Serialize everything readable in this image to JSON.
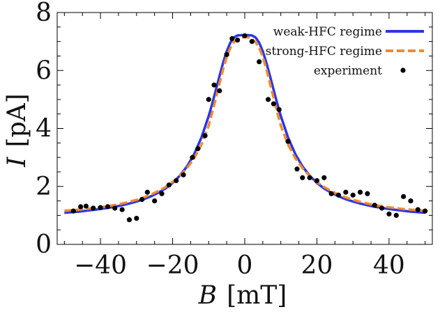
{
  "chart_data": {
    "type": "scatter",
    "xlabel_var": "B",
    "xlabel_unit": "[mT]",
    "ylabel_var": "I",
    "ylabel_unit": "[pA]",
    "xlim": [
      -52,
      52
    ],
    "ylim": [
      0,
      8
    ],
    "x_ticks": [
      -40,
      -20,
      0,
      20,
      40
    ],
    "x_tick_labels": [
      "−40",
      "−20",
      "0",
      "20",
      "40"
    ],
    "y_ticks": [
      0,
      2,
      4,
      6,
      8
    ],
    "y_tick_labels": [
      "0",
      "2",
      "4",
      "6",
      "8"
    ],
    "grid": false,
    "legend_position": "top-right",
    "series": [
      {
        "name": "weak-HFC regime",
        "kind": "line",
        "style": "solid",
        "color": "#2b35e6",
        "x": [
          -50,
          -48,
          -46,
          -44,
          -42,
          -40,
          -38,
          -36,
          -34,
          -32,
          -30,
          -28,
          -26,
          -24,
          -22,
          -20,
          -18,
          -16,
          -14,
          -12,
          -10,
          -9,
          -8,
          -7,
          -6,
          -5,
          -4,
          -3,
          -2,
          -1,
          0,
          1,
          2,
          3,
          4,
          5,
          6,
          7,
          8,
          9,
          10,
          12,
          14,
          16,
          18,
          20,
          22,
          24,
          26,
          28,
          30,
          32,
          34,
          36,
          38,
          40,
          42,
          44,
          46,
          48,
          50
        ],
        "y": [
          1.09,
          1.11,
          1.13,
          1.16,
          1.19,
          1.22,
          1.26,
          1.3,
          1.35,
          1.41,
          1.48,
          1.56,
          1.66,
          1.78,
          1.93,
          2.12,
          2.37,
          2.69,
          3.12,
          3.69,
          4.43,
          4.86,
          5.33,
          5.81,
          6.27,
          6.66,
          6.96,
          7.14,
          7.21,
          7.22,
          7.22,
          7.22,
          7.21,
          7.14,
          6.96,
          6.66,
          6.27,
          5.81,
          5.33,
          4.86,
          4.43,
          3.69,
          3.12,
          2.69,
          2.37,
          2.12,
          1.93,
          1.78,
          1.66,
          1.56,
          1.48,
          1.41,
          1.35,
          1.3,
          1.26,
          1.22,
          1.19,
          1.16,
          1.13,
          1.11,
          1.09
        ]
      },
      {
        "name": "strong-HFC regime",
        "kind": "line",
        "style": "dashed",
        "color": "#f5892a",
        "x": [
          -50,
          -48,
          -46,
          -44,
          -42,
          -40,
          -38,
          -36,
          -34,
          -32,
          -30,
          -28,
          -26,
          -24,
          -22,
          -20,
          -18,
          -16,
          -14,
          -12,
          -10,
          -9,
          -8,
          -7,
          -6,
          -5,
          -4,
          -3,
          -2,
          -1,
          0,
          1,
          2,
          3,
          4,
          5,
          6,
          7,
          8,
          9,
          10,
          12,
          14,
          16,
          18,
          20,
          22,
          24,
          26,
          28,
          30,
          32,
          34,
          36,
          38,
          40,
          42,
          44,
          46,
          48,
          50
        ],
        "y": [
          1.16,
          1.18,
          1.2,
          1.22,
          1.25,
          1.28,
          1.32,
          1.36,
          1.41,
          1.47,
          1.54,
          1.62,
          1.72,
          1.84,
          1.98,
          2.15,
          2.36,
          2.63,
          2.98,
          3.44,
          4.1,
          4.55,
          5.05,
          5.55,
          6.05,
          6.47,
          6.78,
          6.98,
          7.09,
          7.14,
          7.15,
          7.14,
          7.09,
          6.98,
          6.78,
          6.47,
          6.05,
          5.55,
          5.05,
          4.55,
          4.1,
          3.44,
          2.98,
          2.63,
          2.36,
          2.15,
          1.98,
          1.84,
          1.72,
          1.62,
          1.54,
          1.47,
          1.41,
          1.36,
          1.32,
          1.28,
          1.25,
          1.22,
          1.2,
          1.18,
          1.16
        ]
      },
      {
        "name": "experiment",
        "kind": "points",
        "color": "#000000",
        "x": [
          -47.5,
          -45.5,
          -44,
          -42,
          -40,
          -38,
          -36,
          -34,
          -32,
          -30,
          -28.5,
          -27,
          -25,
          -23,
          -21,
          -19,
          -17,
          -14.5,
          -13,
          -11,
          -10,
          -8.5,
          -7,
          -5,
          -3.5,
          -2,
          0,
          2,
          4,
          6.5,
          8,
          9.5,
          12,
          14.5,
          16,
          18,
          20,
          22,
          24,
          26,
          28,
          30,
          32,
          34,
          36,
          38,
          40,
          42,
          44,
          46,
          48,
          50
        ],
        "y": [
          1.15,
          1.3,
          1.32,
          1.25,
          1.27,
          1.3,
          1.25,
          1.2,
          0.85,
          0.9,
          1.55,
          1.8,
          1.5,
          1.75,
          2.05,
          2.2,
          2.4,
          3.0,
          3.3,
          3.75,
          5.0,
          5.5,
          5.3,
          6.55,
          7.1,
          7.05,
          7.2,
          7.0,
          6.3,
          5.0,
          4.85,
          4.65,
          3.55,
          2.6,
          2.3,
          2.3,
          2.2,
          2.3,
          1.75,
          1.7,
          1.8,
          1.7,
          1.8,
          1.75,
          1.35,
          1.25,
          1.05,
          1.0,
          1.65,
          1.5,
          1.2,
          1.15
        ]
      }
    ]
  }
}
